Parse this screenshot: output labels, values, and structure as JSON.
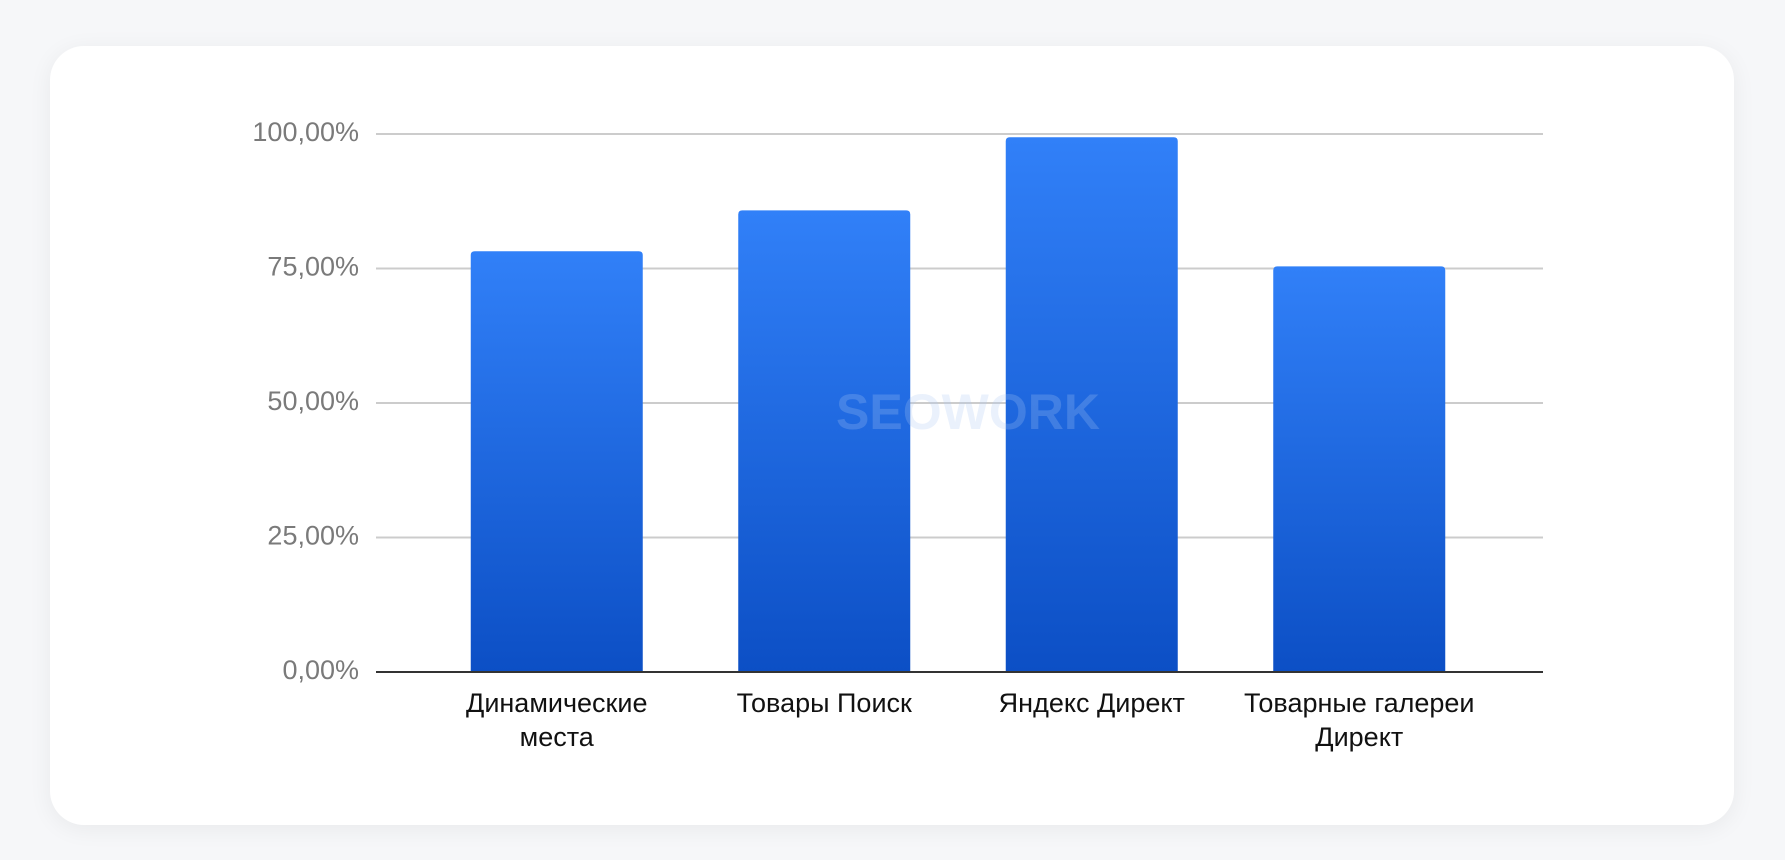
{
  "chart_data": {
    "type": "bar",
    "watermark": "SEOWORK",
    "categories": [
      "Динамические места",
      "Товары Поиск",
      "Яндекс Директ",
      "Товарные галереи Директ"
    ],
    "values": [
      78.2,
      85.8,
      99.4,
      75.4
    ],
    "gradient": [
      "#3180f8",
      "#0c4fc5"
    ],
    "ylim": [
      0,
      100
    ],
    "yticks": [
      {
        "value": 0,
        "label": "0,00%"
      },
      {
        "value": 25,
        "label": "25,00%"
      },
      {
        "value": 50,
        "label": "50,00%"
      },
      {
        "value": 75,
        "label": "75,00%"
      },
      {
        "value": 100,
        "label": "100,00%"
      }
    ],
    "grid": true
  }
}
